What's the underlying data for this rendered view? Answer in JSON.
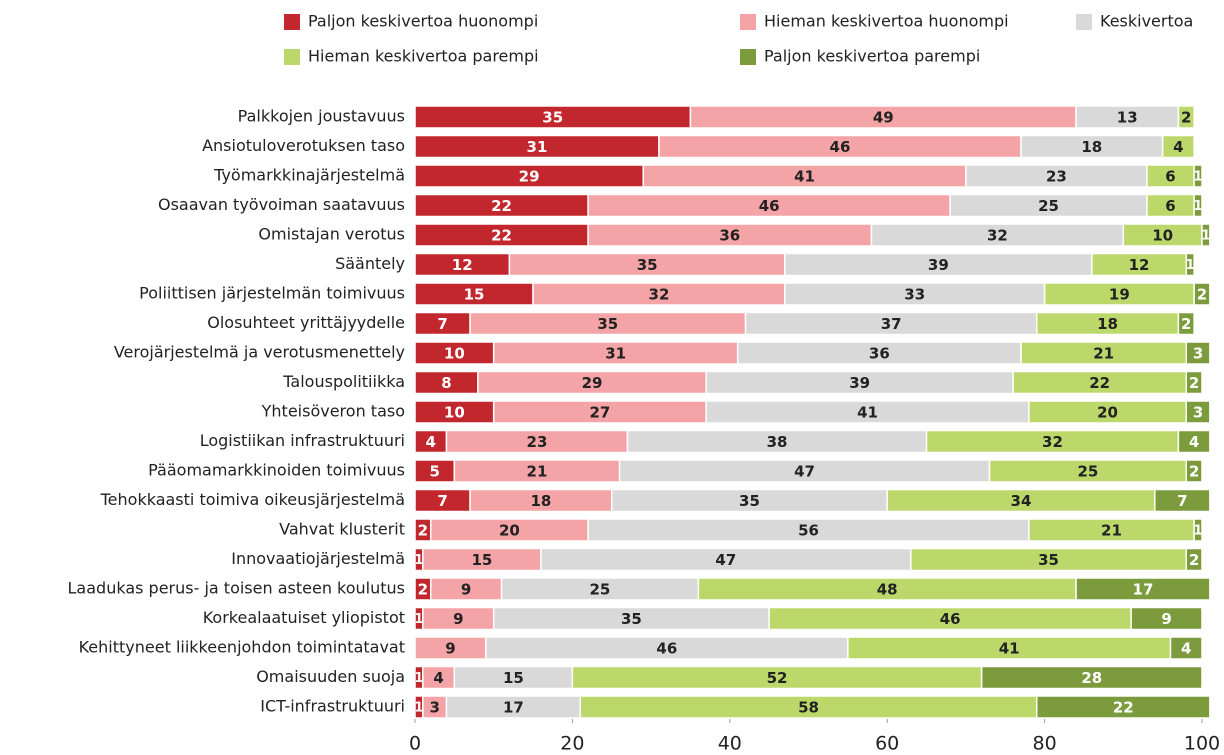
{
  "chart_data": {
    "type": "stacked_bar_horizontal",
    "categories": [
      "Palkkojen joustavuus",
      "Ansiotuloverotuksen taso",
      "Työmarkkinajärjestelmä",
      "Osaavan työvoiman saatavuus",
      "Omistajan verotus",
      "Sääntely",
      "Poliittisen järjestelmän toimivuus",
      "Olosuhteet yrittäjyydelle",
      "Verojärjestelmä ja verotusmenettely",
      "Talouspolitiikka",
      "Yhteisöveron taso",
      "Logistiikan infrastruktuuri",
      "Pääomamarkkinoiden toimivuus",
      "Tehokkaasti toimiva oikeusjärjestelmä",
      "Vahvat klusterit",
      "Innovaatiojärjestelmä",
      "Laadukas perus- ja toisen asteen koulutus",
      "Korkealaatuiset yliopistot",
      "Kehittyneet liikkeenjohdon toimintatavat",
      "Omaisuuden suoja",
      "ICT-infrastruktuuri"
    ],
    "series": [
      {
        "name": "Paljon keskivertoa huonompi",
        "color": "#c1272d",
        "values": [
          35,
          31,
          29,
          22,
          22,
          12,
          15,
          7,
          10,
          8,
          10,
          4,
          5,
          7,
          2,
          1,
          2,
          1,
          null,
          1,
          1
        ]
      },
      {
        "name": "Hieman keskivertoa huonompi",
        "color": "#f4a3a6",
        "values": [
          49,
          46,
          41,
          46,
          36,
          35,
          32,
          35,
          31,
          29,
          27,
          23,
          21,
          18,
          20,
          15,
          9,
          9,
          9,
          4,
          3
        ]
      },
      {
        "name": "Keskivertoa",
        "color": "#d9d9d9",
        "values": [
          13,
          18,
          23,
          25,
          32,
          39,
          33,
          37,
          36,
          39,
          41,
          38,
          47,
          35,
          56,
          47,
          25,
          35,
          46,
          15,
          17
        ]
      },
      {
        "name": "Hieman keskivertoa parempi",
        "color": "#bdd86a",
        "values": [
          2,
          4,
          6,
          6,
          10,
          12,
          19,
          18,
          21,
          22,
          20,
          32,
          25,
          34,
          21,
          35,
          48,
          46,
          41,
          52,
          58
        ]
      },
      {
        "name": "Paljon keskivertoa parempi",
        "color": "#7b9b3c",
        "values": [
          null,
          null,
          1,
          1,
          1,
          1,
          2,
          2,
          3,
          2,
          3,
          4,
          2,
          7,
          1,
          2,
          17,
          9,
          4,
          28,
          22
        ]
      }
    ],
    "xlim": [
      0,
      100
    ],
    "xticks": [
      0,
      20,
      40,
      60,
      80,
      100
    ]
  }
}
